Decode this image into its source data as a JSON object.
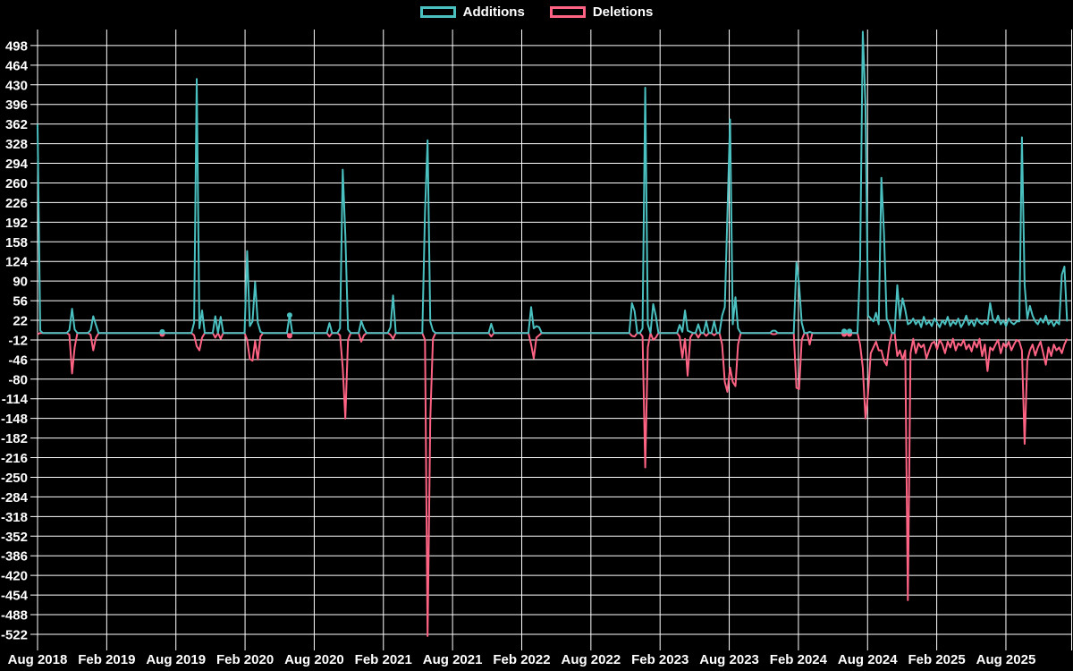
{
  "app": {
    "background": "#000000"
  },
  "legend": {
    "items": [
      {
        "label": "Additions",
        "color": "#4BC0C0"
      },
      {
        "label": "Deletions",
        "color": "#FF6384"
      }
    ]
  },
  "chart_data": {
    "type": "line",
    "title": "",
    "legend_position": "top",
    "background_color": "#000000",
    "grid_color": "#ffffff",
    "text_color": "#ffffff",
    "x_axis": {
      "tick_labels": [
        "Aug 2018",
        "Feb 2019",
        "Aug 2019",
        "Feb 2020",
        "Aug 2020",
        "Feb 2021",
        "Aug 2021",
        "Feb 2022",
        "Aug 2022",
        "Feb 2023",
        "Aug 2023",
        "Feb 2024",
        "Aug 2024",
        "Feb 2025",
        "Aug 2025"
      ],
      "weeks_per_tick": 26.07,
      "grid": true
    },
    "y_axis": {
      "min": -522,
      "max": 498,
      "step": 34,
      "tick_labels": [
        "498",
        "464",
        "430",
        "396",
        "362",
        "328",
        "294",
        "260",
        "226",
        "192",
        "158",
        "124",
        "90",
        "56",
        "22",
        "-12",
        "-46",
        "-80",
        "-114",
        "-148",
        "-182",
        "-216",
        "-250",
        "-284",
        "-318",
        "-352",
        "-386",
        "-420",
        "-454",
        "-488",
        "-522"
      ],
      "grid": true
    },
    "weeks_total": 388,
    "marker_weeks": [
      47,
      95,
      304,
      306
    ],
    "series": [
      {
        "name": "Additions",
        "color": "#4BC0C0",
        "points": [
          [
            0,
            362
          ],
          [
            1,
            4
          ],
          [
            12,
            5
          ],
          [
            13,
            42
          ],
          [
            14,
            6
          ],
          [
            20,
            5
          ],
          [
            21,
            29
          ],
          [
            22,
            14
          ],
          [
            47,
            2
          ],
          [
            59,
            18
          ],
          [
            60,
            440
          ],
          [
            61,
            8
          ],
          [
            62,
            39
          ],
          [
            67,
            29
          ],
          [
            69,
            28
          ],
          [
            79,
            142
          ],
          [
            80,
            12
          ],
          [
            81,
            20
          ],
          [
            82,
            88
          ],
          [
            83,
            18
          ],
          [
            84,
            2
          ],
          [
            95,
            31
          ],
          [
            110,
            17
          ],
          [
            114,
            8
          ],
          [
            115,
            283
          ],
          [
            116,
            170
          ],
          [
            117,
            6
          ],
          [
            122,
            21
          ],
          [
            123,
            8
          ],
          [
            133,
            10
          ],
          [
            134,
            65
          ],
          [
            146,
            209
          ],
          [
            147,
            334
          ],
          [
            148,
            20
          ],
          [
            149,
            4
          ],
          [
            171,
            16
          ],
          [
            186,
            45
          ],
          [
            187,
            8
          ],
          [
            188,
            12
          ],
          [
            189,
            10
          ],
          [
            224,
            52
          ],
          [
            225,
            38
          ],
          [
            228,
            8
          ],
          [
            229,
            425
          ],
          [
            230,
            15
          ],
          [
            232,
            50
          ],
          [
            233,
            30
          ],
          [
            242,
            14
          ],
          [
            243,
            2
          ],
          [
            244,
            39
          ],
          [
            245,
            4
          ],
          [
            246,
            2
          ],
          [
            249,
            15
          ],
          [
            252,
            20
          ],
          [
            255,
            20
          ],
          [
            258,
            30
          ],
          [
            259,
            45
          ],
          [
            260,
            205
          ],
          [
            261,
            370
          ],
          [
            262,
            15
          ],
          [
            263,
            62
          ],
          [
            264,
            8
          ],
          [
            277,
            4
          ],
          [
            278,
            4
          ],
          [
            286,
            122
          ],
          [
            287,
            83
          ],
          [
            288,
            18
          ],
          [
            291,
            2
          ],
          [
            304,
            3
          ],
          [
            306,
            3
          ],
          [
            310,
            120
          ],
          [
            311,
            522
          ],
          [
            312,
            395
          ],
          [
            313,
            30
          ],
          [
            314,
            25
          ],
          [
            315,
            20
          ],
          [
            316,
            35
          ],
          [
            317,
            15
          ],
          [
            318,
            269
          ],
          [
            319,
            173
          ],
          [
            320,
            25
          ],
          [
            321,
            15
          ],
          [
            324,
            83
          ],
          [
            325,
            25
          ],
          [
            326,
            60
          ],
          [
            327,
            40
          ],
          [
            328,
            15
          ],
          [
            329,
            18
          ],
          [
            330,
            25
          ],
          [
            331,
            15
          ],
          [
            332,
            22
          ],
          [
            333,
            10
          ],
          [
            334,
            28
          ],
          [
            335,
            15
          ],
          [
            336,
            20
          ],
          [
            337,
            12
          ],
          [
            338,
            25
          ],
          [
            339,
            18
          ],
          [
            340,
            10
          ],
          [
            341,
            22
          ],
          [
            342,
            15
          ],
          [
            343,
            28
          ],
          [
            344,
            12
          ],
          [
            345,
            20
          ],
          [
            346,
            15
          ],
          [
            347,
            25
          ],
          [
            348,
            10
          ],
          [
            349,
            18
          ],
          [
            350,
            30
          ],
          [
            351,
            14
          ],
          [
            352,
            22
          ],
          [
            353,
            12
          ],
          [
            354,
            25
          ],
          [
            355,
            18
          ],
          [
            356,
            15
          ],
          [
            357,
            20
          ],
          [
            358,
            15
          ],
          [
            359,
            52
          ],
          [
            360,
            25
          ],
          [
            361,
            18
          ],
          [
            362,
            30
          ],
          [
            363,
            15
          ],
          [
            364,
            22
          ],
          [
            365,
            12
          ],
          [
            366,
            25
          ],
          [
            367,
            18
          ],
          [
            368,
            15
          ],
          [
            369,
            20
          ],
          [
            370,
            20
          ],
          [
            371,
            339
          ],
          [
            372,
            83
          ],
          [
            373,
            25
          ],
          [
            374,
            47
          ],
          [
            375,
            30
          ],
          [
            376,
            20
          ],
          [
            377,
            15
          ],
          [
            378,
            25
          ],
          [
            379,
            18
          ],
          [
            380,
            30
          ],
          [
            381,
            15
          ],
          [
            382,
            22
          ],
          [
            383,
            12
          ],
          [
            384,
            20
          ],
          [
            385,
            15
          ],
          [
            386,
            101
          ],
          [
            387,
            115
          ],
          [
            388,
            20
          ]
        ]
      },
      {
        "name": "Deletions",
        "color": "#FF6384",
        "points": [
          [
            0,
            -2
          ],
          [
            12,
            -3
          ],
          [
            13,
            -70
          ],
          [
            14,
            -25
          ],
          [
            20,
            -3
          ],
          [
            21,
            -30
          ],
          [
            22,
            -8
          ],
          [
            47,
            -2
          ],
          [
            59,
            -4
          ],
          [
            60,
            -23
          ],
          [
            61,
            -30
          ],
          [
            62,
            -8
          ],
          [
            67,
            -8
          ],
          [
            69,
            -10
          ],
          [
            79,
            -12
          ],
          [
            80,
            -45
          ],
          [
            81,
            -48
          ],
          [
            82,
            -14
          ],
          [
            83,
            -46
          ],
          [
            84,
            -6
          ],
          [
            95,
            -5
          ],
          [
            110,
            -6
          ],
          [
            114,
            -4
          ],
          [
            115,
            -60
          ],
          [
            116,
            -148
          ],
          [
            117,
            -12
          ],
          [
            122,
            -15
          ],
          [
            123,
            -4
          ],
          [
            133,
            -3
          ],
          [
            134,
            -10
          ],
          [
            146,
            -12
          ],
          [
            147,
            -525
          ],
          [
            148,
            -150
          ],
          [
            149,
            -10
          ],
          [
            171,
            -6
          ],
          [
            186,
            -20
          ],
          [
            187,
            -44
          ],
          [
            188,
            -8
          ],
          [
            189,
            -4
          ],
          [
            224,
            -5
          ],
          [
            225,
            -6
          ],
          [
            228,
            -6
          ],
          [
            229,
            -233
          ],
          [
            230,
            -25
          ],
          [
            232,
            -12
          ],
          [
            233,
            -8
          ],
          [
            242,
            -6
          ],
          [
            243,
            -43
          ],
          [
            244,
            -10
          ],
          [
            245,
            -74
          ],
          [
            246,
            -8
          ],
          [
            249,
            -8
          ],
          [
            252,
            -5
          ],
          [
            255,
            -4
          ],
          [
            258,
            -20
          ],
          [
            259,
            -85
          ],
          [
            260,
            -102
          ],
          [
            261,
            -60
          ],
          [
            262,
            -85
          ],
          [
            263,
            -92
          ],
          [
            264,
            -20
          ],
          [
            277,
            -2
          ],
          [
            278,
            -2
          ],
          [
            286,
            -95
          ],
          [
            287,
            -97
          ],
          [
            288,
            -12
          ],
          [
            291,
            -20
          ],
          [
            304,
            -2
          ],
          [
            306,
            -2
          ],
          [
            310,
            -20
          ],
          [
            311,
            -60
          ],
          [
            312,
            -148
          ],
          [
            313,
            -105
          ],
          [
            314,
            -35
          ],
          [
            315,
            -25
          ],
          [
            316,
            -15
          ],
          [
            317,
            -30
          ],
          [
            318,
            -30
          ],
          [
            319,
            -48
          ],
          [
            320,
            -56
          ],
          [
            321,
            -20
          ],
          [
            324,
            -40
          ],
          [
            325,
            -30
          ],
          [
            326,
            -46
          ],
          [
            327,
            -30
          ],
          [
            328,
            -463
          ],
          [
            329,
            -35
          ],
          [
            330,
            -10
          ],
          [
            331,
            -35
          ],
          [
            332,
            -18
          ],
          [
            333,
            -25
          ],
          [
            334,
            -20
          ],
          [
            335,
            -44
          ],
          [
            336,
            -30
          ],
          [
            337,
            -18
          ],
          [
            338,
            -15
          ],
          [
            339,
            -28
          ],
          [
            340,
            -12
          ],
          [
            341,
            -20
          ],
          [
            342,
            -35
          ],
          [
            343,
            -15
          ],
          [
            344,
            -25
          ],
          [
            345,
            -10
          ],
          [
            346,
            -30
          ],
          [
            347,
            -18
          ],
          [
            348,
            -22
          ],
          [
            349,
            -12
          ],
          [
            350,
            -28
          ],
          [
            351,
            -20
          ],
          [
            352,
            -32
          ],
          [
            353,
            -15
          ],
          [
            354,
            -25
          ],
          [
            355,
            -10
          ],
          [
            356,
            -40
          ],
          [
            357,
            -20
          ],
          [
            358,
            -66
          ],
          [
            359,
            -25
          ],
          [
            360,
            -30
          ],
          [
            361,
            -20
          ],
          [
            362,
            -12
          ],
          [
            363,
            -35
          ],
          [
            364,
            -18
          ],
          [
            365,
            -25
          ],
          [
            366,
            -15
          ],
          [
            367,
            -30
          ],
          [
            368,
            -20
          ],
          [
            369,
            -12
          ],
          [
            370,
            -15
          ],
          [
            371,
            -30
          ],
          [
            372,
            -192
          ],
          [
            373,
            -48
          ],
          [
            374,
            -30
          ],
          [
            375,
            -20
          ],
          [
            376,
            -39
          ],
          [
            377,
            -25
          ],
          [
            378,
            -15
          ],
          [
            379,
            -35
          ],
          [
            380,
            -55
          ],
          [
            381,
            -25
          ],
          [
            382,
            -40
          ],
          [
            383,
            -20
          ],
          [
            384,
            -30
          ],
          [
            385,
            -25
          ],
          [
            386,
            -35
          ],
          [
            387,
            -20
          ],
          [
            388,
            -10
          ]
        ]
      }
    ]
  }
}
